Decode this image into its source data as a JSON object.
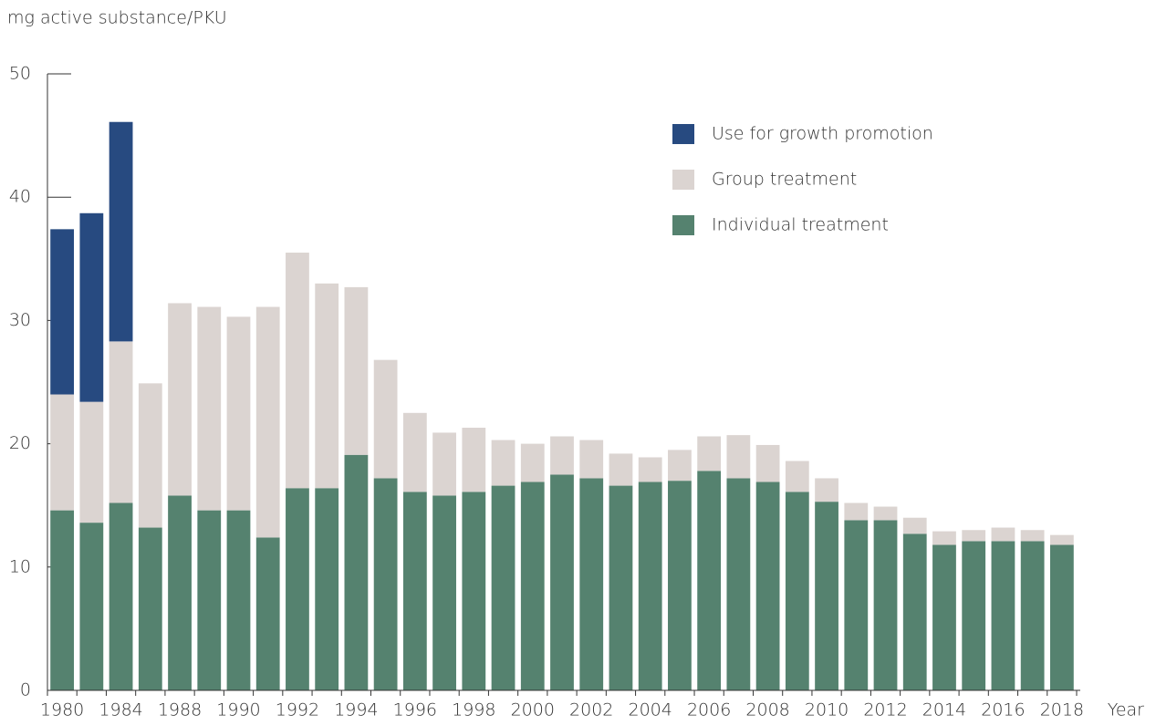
{
  "chart_data": {
    "type": "stacked_bar",
    "y_axis_label": "mg active substance/PKU",
    "x_axis_label": "Year",
    "categories": [
      "1980",
      null,
      "1984",
      null,
      "1988",
      null,
      "1990",
      null,
      "1992",
      null,
      "1994",
      null,
      "1996",
      null,
      "1998",
      null,
      "2000",
      null,
      "2002",
      null,
      "2004",
      null,
      "2006",
      null,
      "2008",
      null,
      "2010",
      null,
      "2012",
      null,
      "2014",
      null,
      "2016",
      null,
      "2018"
    ],
    "series": [
      {
        "name": "Individual treatment",
        "color": "#55826f",
        "values": [
          14.6,
          13.6,
          15.2,
          13.2,
          15.8,
          14.6,
          14.6,
          12.4,
          16.4,
          16.4,
          19.1,
          17.2,
          16.1,
          15.8,
          16.1,
          16.6,
          16.9,
          17.5,
          17.2,
          16.6,
          16.9,
          17.0,
          17.8,
          17.2,
          16.9,
          16.1,
          15.3,
          13.8,
          13.8,
          12.7,
          11.8,
          12.1,
          12.1,
          12.1,
          11.8
        ]
      },
      {
        "name": "Group treatment",
        "color": "#dbd4d1",
        "values": [
          9.4,
          9.8,
          13.1,
          11.7,
          15.6,
          16.5,
          15.7,
          18.7,
          19.1,
          16.6,
          13.6,
          9.6,
          6.4,
          5.1,
          5.2,
          3.7,
          3.1,
          3.1,
          3.1,
          2.6,
          2.0,
          2.5,
          2.8,
          3.5,
          3.0,
          2.5,
          1.9,
          1.4,
          1.1,
          1.3,
          1.1,
          0.9,
          1.1,
          0.9,
          0.8
        ]
      },
      {
        "name": "Use for growth promotion",
        "color": "#274a80",
        "values": [
          13.4,
          15.3,
          17.8,
          null,
          null,
          null,
          null,
          null,
          null,
          null,
          null,
          null,
          null,
          null,
          null,
          null,
          null,
          null,
          null,
          null,
          null,
          null,
          null,
          null,
          null,
          null,
          null,
          null,
          null,
          null,
          null,
          null,
          null,
          null,
          null
        ]
      }
    ],
    "ylim": [
      0,
      50
    ],
    "yticks": [
      0,
      10,
      20,
      30,
      40,
      50
    ],
    "grid": false
  }
}
